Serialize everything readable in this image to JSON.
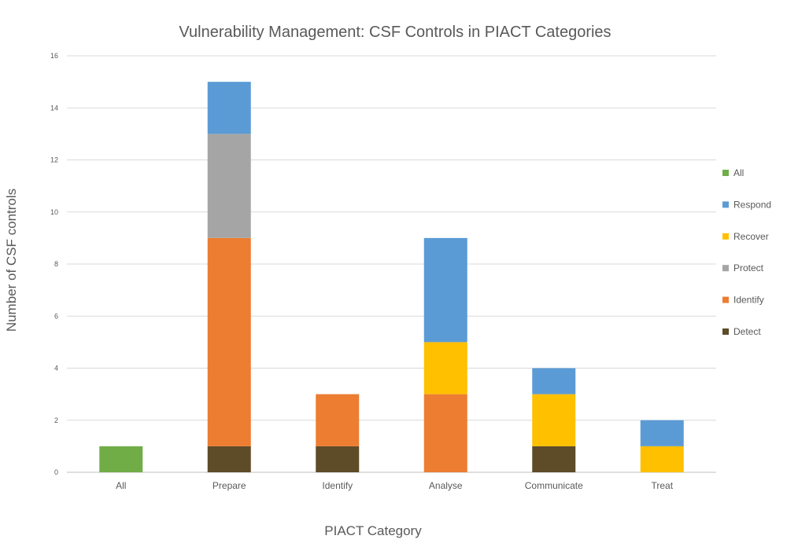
{
  "chart_data": {
    "type": "bar",
    "stacked": true,
    "title": "Vulnerability Management: CSF Controls in PIACT Categories",
    "xlabel": "PIACT Category",
    "ylabel": "Number of CSF controls",
    "ylim": [
      0,
      16
    ],
    "yticks": [
      0,
      2,
      4,
      6,
      8,
      10,
      12,
      14,
      16
    ],
    "grid": true,
    "legend_position": "right",
    "categories": [
      "All",
      "Prepare",
      "Identify",
      "Analyse",
      "Communicate",
      "Treat"
    ],
    "series": [
      {
        "name": "Detect",
        "color": "#5E4B28",
        "values": [
          0,
          1,
          1,
          0,
          1,
          0
        ]
      },
      {
        "name": "Identify",
        "color": "#ED7D31",
        "values": [
          0,
          8,
          2,
          3,
          0,
          0
        ]
      },
      {
        "name": "Protect",
        "color": "#A5A5A5",
        "values": [
          0,
          4,
          0,
          0,
          0,
          0
        ]
      },
      {
        "name": "Recover",
        "color": "#FFC000",
        "values": [
          0,
          0,
          0,
          2,
          2,
          1
        ]
      },
      {
        "name": "Respond",
        "color": "#5B9BD5",
        "values": [
          0,
          2,
          0,
          4,
          1,
          1
        ]
      },
      {
        "name": "All",
        "color": "#70AD47",
        "values": [
          1,
          0,
          0,
          0,
          0,
          0
        ]
      }
    ],
    "legend_order": [
      "All",
      "Respond",
      "Recover",
      "Protect",
      "Identify",
      "Detect"
    ]
  }
}
